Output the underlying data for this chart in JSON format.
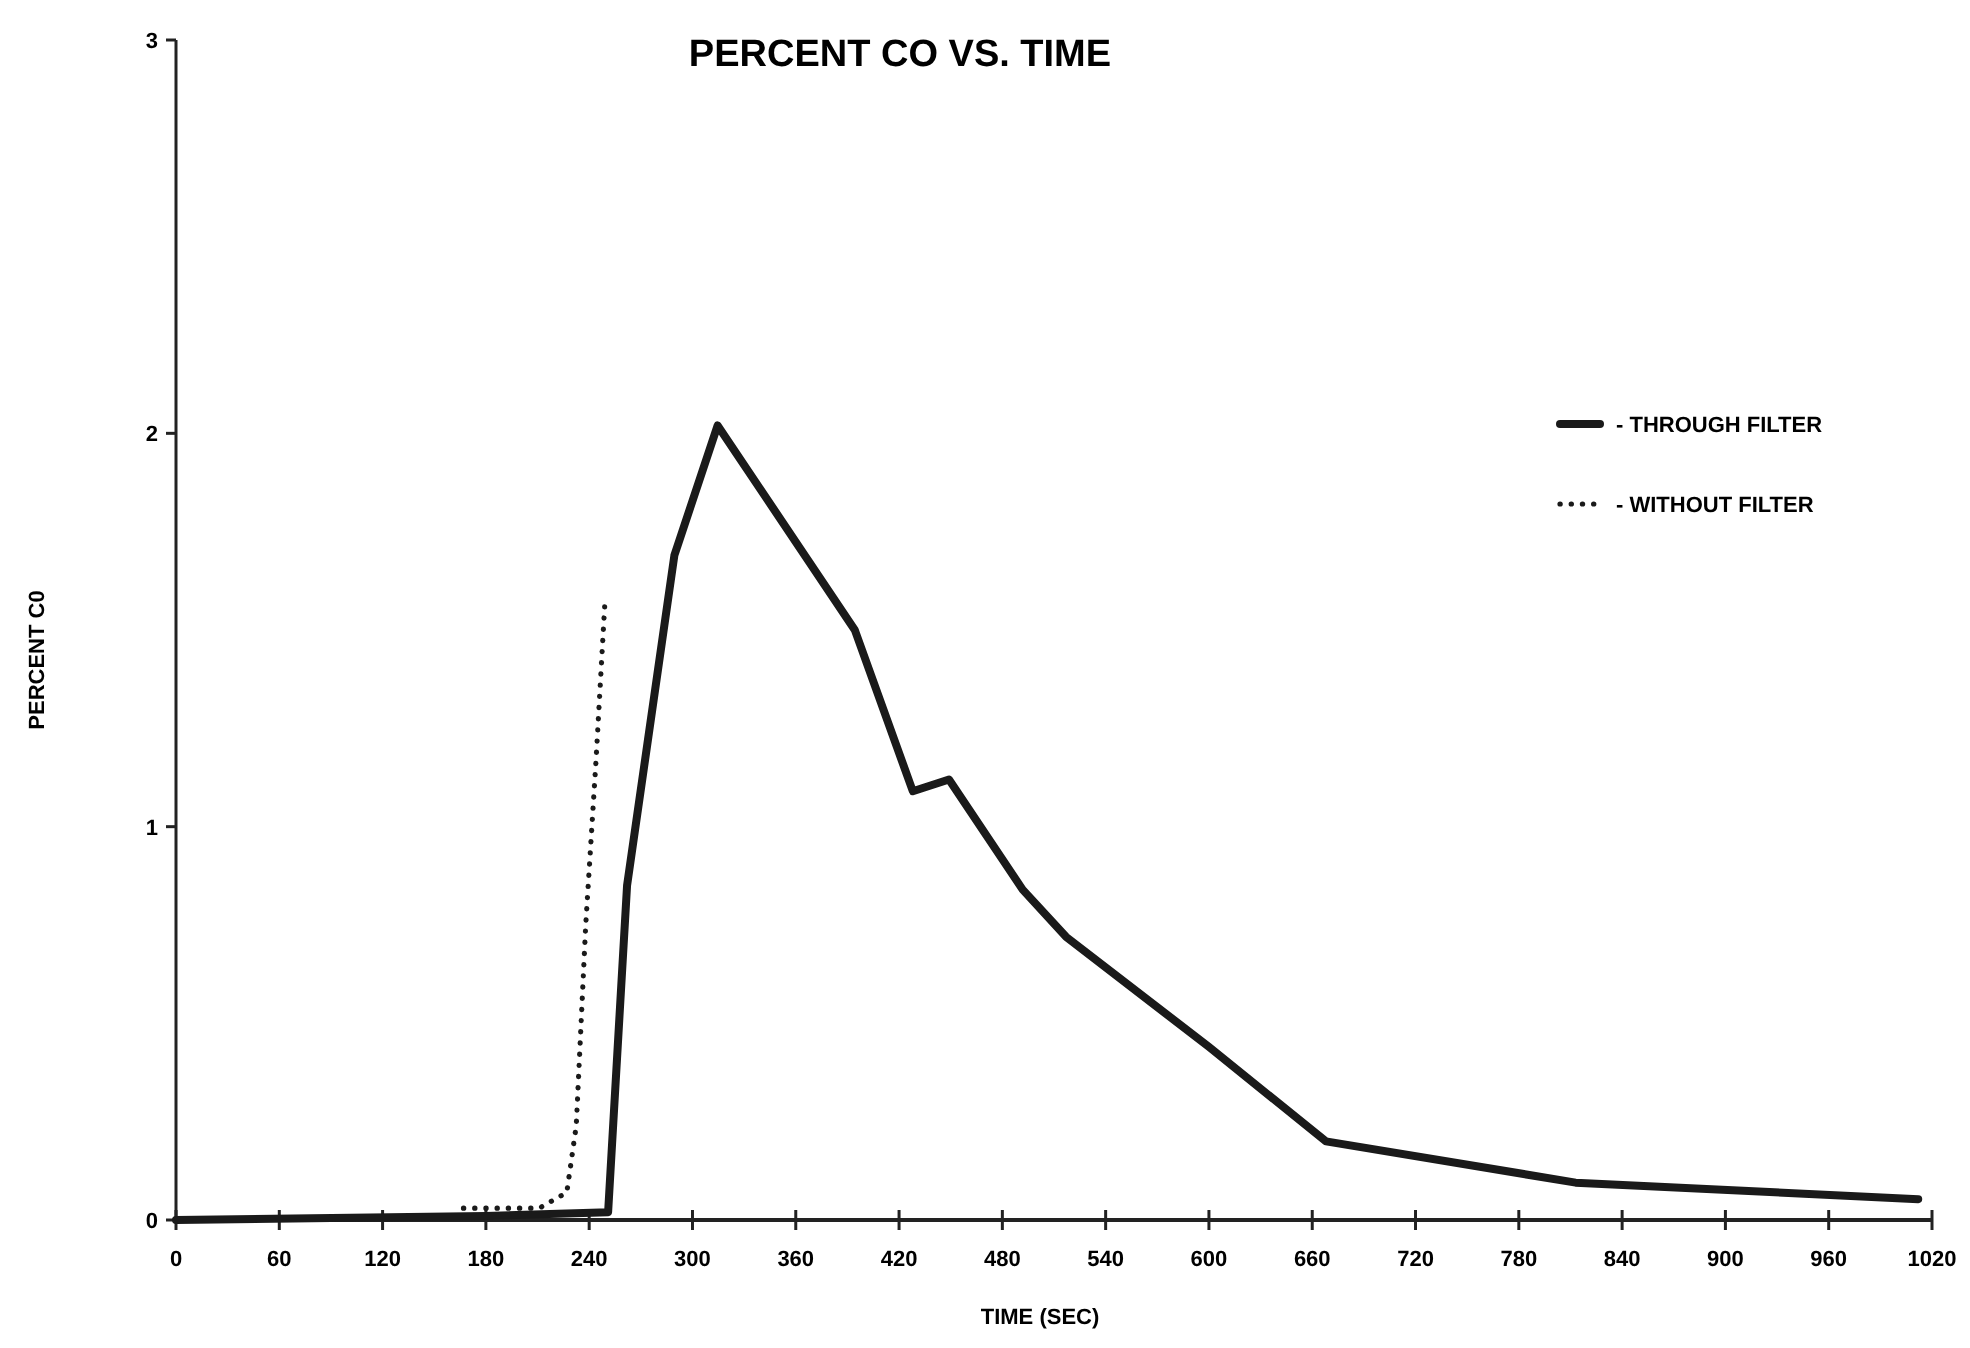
{
  "chart_data": {
    "type": "line",
    "title": "PERCENT CO VS. TIME",
    "xlabel": "TIME (SEC)",
    "ylabel": "PERCENT C0",
    "xlim": [
      0,
      1020
    ],
    "xticks": [
      0,
      60,
      120,
      180,
      240,
      300,
      360,
      420,
      480,
      540,
      600,
      660,
      720,
      780,
      840,
      900,
      960,
      1020
    ],
    "ylim": [
      0,
      3
    ],
    "yticks": [
      0,
      1,
      2,
      3
    ],
    "grid": false,
    "legend": "top right",
    "marker": "none",
    "series": [
      {
        "name": "- THROUGH FILTER",
        "color": "#1a1a1a",
        "line_style": "solid",
        "x": [
          0,
          180,
          251,
          262,
          289.5,
          314.6,
          394.3,
          428,
          449,
          491.8,
          517,
          600,
          668,
          813,
          1012
        ],
        "values": [
          0,
          0.01,
          0.02,
          0.85,
          1.69,
          2.02,
          1.5,
          1.09,
          1.12,
          0.84,
          0.72,
          0.44,
          0.2,
          0.095,
          0.053
        ]
      },
      {
        "name": "- WITHOUT FILTER",
        "color": "#1a1a1a",
        "line_style": "dotted",
        "x": [
          167,
          211,
          227,
          232.5,
          238,
          244,
          249
        ],
        "values": [
          0.03,
          0.03,
          0.07,
          0.24,
          0.75,
          1.17,
          1.56
        ]
      }
    ]
  }
}
